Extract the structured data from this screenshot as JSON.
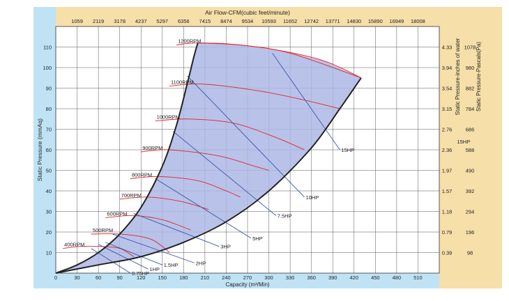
{
  "chart_data": {
    "type": "line",
    "title": "",
    "top_axis_label": "Air Flow-CFM(cubic feet/minute)",
    "top_ticks": [
      "1059",
      "2119",
      "3178",
      "4237",
      "5297",
      "6356",
      "7415",
      "8474",
      "9534",
      "10593",
      "11652",
      "12742",
      "13771",
      "14830",
      "15890",
      "16949",
      "18008"
    ],
    "xlabel": "Capacity (m³/Min)",
    "x_ticks": [
      0,
      30,
      60,
      90,
      120,
      150,
      180,
      210,
      240,
      270,
      300,
      330,
      360,
      390,
      420,
      450,
      480,
      510
    ],
    "xlim": [
      0,
      540
    ],
    "ylabel": "Static Pressure (mmAq)",
    "y_ticks": [
      10,
      20,
      30,
      40,
      50,
      60,
      70,
      80,
      90,
      100,
      110
    ],
    "ylim": [
      0,
      120
    ],
    "right_axis_label_1": "Static Pressure-inches of water",
    "right_ticks_1": [
      "0.39",
      "0.79",
      "1.18",
      "1.57",
      "1.97",
      "2.36",
      "2.76",
      "3.15",
      "3.54",
      "3.94",
      "4.33"
    ],
    "right_axis_label_2": "Static Pressure-Pascals(Pa)",
    "right_ticks_2": [
      "98",
      "196",
      "294",
      "392",
      "490",
      "588",
      "686",
      "784",
      "882",
      "980",
      "1078"
    ],
    "grid": true,
    "operating_region": {
      "left_boundary": [
        [
          0,
          0
        ],
        [
          30,
          4
        ],
        [
          60,
          10
        ],
        [
          90,
          19
        ],
        [
          120,
          32
        ],
        [
          150,
          52
        ],
        [
          170,
          72
        ],
        [
          185,
          92
        ],
        [
          195,
          106
        ],
        [
          200,
          112
        ]
      ],
      "right_boundary": [
        [
          0,
          0
        ],
        [
          60,
          4
        ],
        [
          120,
          8
        ],
        [
          180,
          15
        ],
        [
          240,
          25
        ],
        [
          300,
          40
        ],
        [
          360,
          61
        ],
        [
          400,
          80
        ],
        [
          430,
          95
        ]
      ],
      "top_boundary": [
        [
          200,
          112
        ],
        [
          260,
          111
        ],
        [
          320,
          108
        ],
        [
          380,
          103
        ],
        [
          430,
          95
        ]
      ]
    },
    "rpm_curves": [
      {
        "name": "400RPM",
        "points": [
          [
            10,
            12
          ],
          [
            35,
            13
          ],
          [
            60,
            13
          ],
          [
            90,
            12
          ],
          [
            110,
            8
          ]
        ]
      },
      {
        "name": "500RPM",
        "points": [
          [
            50,
            19
          ],
          [
            90,
            19
          ],
          [
            130,
            17
          ],
          [
            150,
            13
          ],
          [
            160,
            10
          ]
        ]
      },
      {
        "name": "600RPM",
        "points": [
          [
            70,
            27
          ],
          [
            110,
            28
          ],
          [
            150,
            26
          ],
          [
            190,
            21
          ]
        ]
      },
      {
        "name": "700RPM",
        "points": [
          [
            90,
            36
          ],
          [
            130,
            37
          ],
          [
            175,
            35
          ],
          [
            215,
            31
          ]
        ]
      },
      {
        "name": "800RPM",
        "points": [
          [
            105,
            46
          ],
          [
            145,
            47
          ],
          [
            200,
            45
          ],
          [
            240,
            40
          ],
          [
            260,
            37
          ]
        ]
      },
      {
        "name": "900RPM",
        "points": [
          [
            120,
            59
          ],
          [
            160,
            60
          ],
          [
            230,
            57
          ],
          [
            280,
            52
          ],
          [
            300,
            50
          ]
        ]
      },
      {
        "name": "1000RPM",
        "points": [
          [
            140,
            74
          ],
          [
            185,
            75
          ],
          [
            250,
            73
          ],
          [
            310,
            66
          ],
          [
            350,
            60
          ]
        ]
      },
      {
        "name": "1100RPM",
        "points": [
          [
            160,
            91
          ],
          [
            205,
            92
          ],
          [
            280,
            89
          ],
          [
            340,
            85
          ],
          [
            400,
            80
          ]
        ]
      },
      {
        "name": "1200RPM",
        "points": [
          [
            170,
            111
          ],
          [
            200,
            112
          ],
          [
            260,
            111
          ],
          [
            330,
            107
          ],
          [
            430,
            95
          ]
        ]
      }
    ],
    "hp_lines": [
      {
        "name": "0.75HP",
        "points": [
          [
            50,
            12
          ],
          [
            105,
            0
          ]
        ]
      },
      {
        "name": "1HP",
        "points": [
          [
            60,
            14
          ],
          [
            130,
            2
          ]
        ]
      },
      {
        "name": "1.5HP",
        "points": [
          [
            70,
            15
          ],
          [
            150,
            4
          ]
        ]
      },
      {
        "name": "2HP",
        "points": [
          [
            80,
            19
          ],
          [
            195,
            5
          ]
        ]
      },
      {
        "name": "3HP",
        "points": [
          [
            110,
            29
          ],
          [
            230,
            13
          ]
        ]
      },
      {
        "name": "5HP",
        "points": [
          [
            140,
            46
          ],
          [
            275,
            17
          ]
        ]
      },
      {
        "name": "7.5HP",
        "points": [
          [
            165,
            69
          ],
          [
            310,
            28
          ]
        ]
      },
      {
        "name": "10HP",
        "points": [
          [
            185,
            96
          ],
          [
            350,
            37
          ]
        ]
      },
      {
        "name": "15HP",
        "points": [
          [
            305,
            107
          ],
          [
            400,
            60
          ]
        ]
      }
    ],
    "annotations": [
      {
        "text": "15HP",
        "x": 565,
        "y": 63
      }
    ]
  },
  "colors": {
    "outer_frame": "#bfe3f5",
    "top_band": "#f6dfa8",
    "right_band": "#f6dfa8",
    "region_fill": "#adb7e5",
    "boundary": "#222222",
    "rpm_line": "#e0242c",
    "hp_line": "#3a57a9",
    "grid": "#555555"
  }
}
